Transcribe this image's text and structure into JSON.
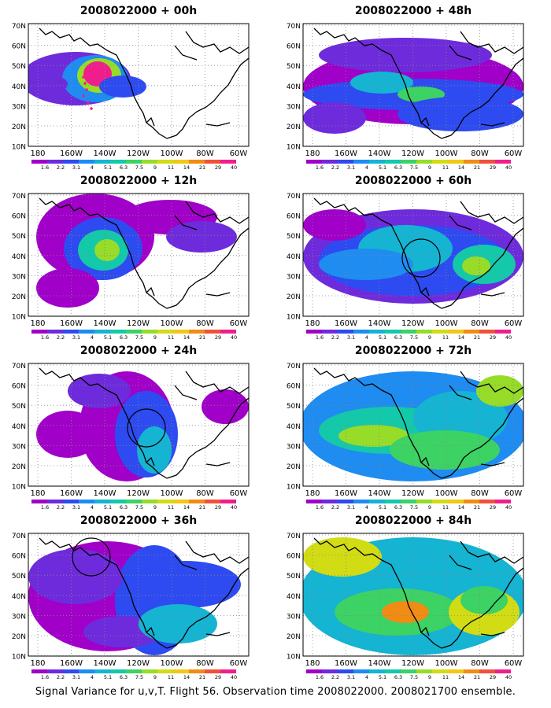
{
  "panels": [
    {
      "title": "2008022000 + 00h",
      "lead": "00h",
      "circle": false,
      "obs_points": true
    },
    {
      "title": "2008022000 + 48h",
      "lead": "48h",
      "circle": false,
      "obs_points": false
    },
    {
      "title": "2008022000 + 12h",
      "lead": "12h",
      "circle": false,
      "obs_points": false
    },
    {
      "title": "2008022000 + 60h",
      "lead": "60h",
      "circle": true,
      "obs_points": false
    },
    {
      "title": "2008022000 + 24h",
      "lead": "24h",
      "circle": true,
      "obs_points": false
    },
    {
      "title": "2008022000 + 72h",
      "lead": "72h",
      "circle": false,
      "obs_points": false
    },
    {
      "title": "2008022000 + 36h",
      "lead": "36h",
      "circle": true,
      "obs_points": false
    },
    {
      "title": "2008022000 + 84h",
      "lead": "84h",
      "circle": false,
      "obs_points": false
    }
  ],
  "axes": {
    "lon_ticks": [
      "180",
      "160W",
      "140W",
      "120W",
      "100W",
      "80W",
      "60W"
    ],
    "lat_ticks": [
      "70N",
      "60N",
      "50N",
      "40N",
      "30N",
      "20N",
      "10N"
    ]
  },
  "colorbar": {
    "labels": [
      "1.6",
      "2.2",
      "3.1",
      "4",
      "5.1",
      "6.3",
      "7.5",
      "9",
      "11",
      "14",
      "21",
      "29",
      "40"
    ],
    "colors": [
      "#a000c8",
      "#6e2bdc",
      "#2d4bf0",
      "#1e8cf0",
      "#14b4d2",
      "#14c8aa",
      "#3cd264",
      "#96dc28",
      "#d2dc14",
      "#f0c814",
      "#f08c14",
      "#f0503c",
      "#f01e8c"
    ]
  },
  "caption": "Signal Variance for u,v,T. Flight 56. Observation time 2008022000. 2008021700 ensemble."
}
